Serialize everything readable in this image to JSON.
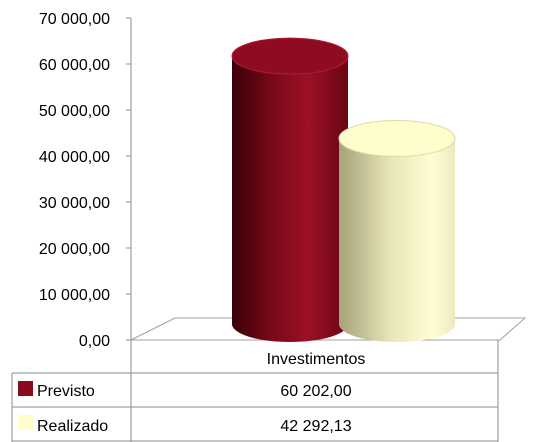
{
  "chart_data": {
    "type": "bar",
    "style": "3d-cylinder",
    "categories": [
      "Investimentos"
    ],
    "series": [
      {
        "name": "Previsto",
        "values": [
          60202.0
        ],
        "value_labels": [
          "60 202,00"
        ],
        "color": "#8B0A1E"
      },
      {
        "name": "Realizado",
        "values": [
          42292.13
        ],
        "value_labels": [
          "42 292,13"
        ],
        "color": "#FFFDCB"
      }
    ],
    "yticks": [
      "70 000,00",
      "60 000,00",
      "50 000,00",
      "40 000,00",
      "30 000,00",
      "20 000,00",
      "10 000,00",
      "0,00"
    ],
    "ylim": [
      0,
      70000
    ],
    "legend": "data-table",
    "grid": false
  }
}
